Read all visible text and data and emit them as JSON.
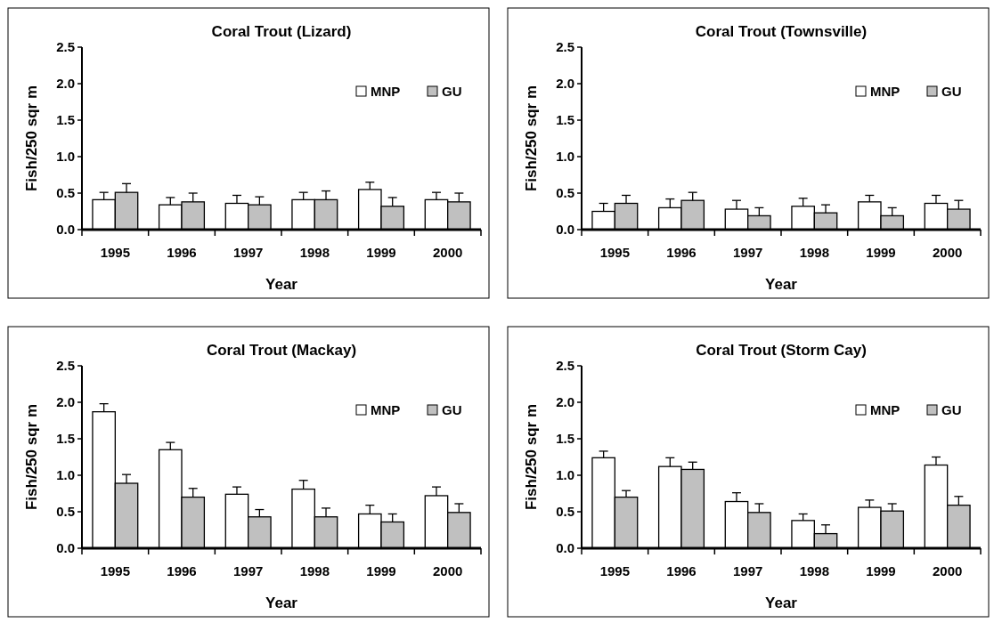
{
  "chart_data": [
    {
      "type": "bar",
      "title": "Coral Trout (Lizard)",
      "xlabel": "Year",
      "ylabel": "Fish/250 sqr m",
      "categories": [
        "1995",
        "1996",
        "1997",
        "1998",
        "1999",
        "2000"
      ],
      "ylim": [
        0,
        2.5
      ],
      "yticks": [
        {
          "value": 0,
          "label": "0.0"
        },
        {
          "value": 0.5,
          "label": "0.5"
        },
        {
          "value": 1,
          "label": "1.0"
        },
        {
          "value": 1.5,
          "label": "1.5"
        },
        {
          "value": 2,
          "label": "2.0"
        },
        {
          "value": 2.5,
          "label": "2.5"
        }
      ],
      "legend": "top right",
      "series": [
        {
          "name": "MNP",
          "color": "#ffffff",
          "values": [
            0.41,
            0.34,
            0.36,
            0.41,
            0.55,
            0.41
          ],
          "errors": [
            [
              0.41,
              0.51
            ],
            [
              0.34,
              0.44
            ],
            [
              0.36,
              0.47
            ],
            [
              0.41,
              0.51
            ],
            [
              0.55,
              0.65
            ],
            [
              0.41,
              0.51
            ]
          ]
        },
        {
          "name": "GU",
          "color": "#c0c0c0",
          "values": [
            0.51,
            0.38,
            0.34,
            0.41,
            0.32,
            0.38
          ],
          "errors": [
            [
              0.51,
              0.63
            ],
            [
              0.38,
              0.5
            ],
            [
              0.34,
              0.45
            ],
            [
              0.41,
              0.53
            ],
            [
              0.32,
              0.44
            ],
            [
              0.38,
              0.5
            ]
          ]
        }
      ]
    },
    {
      "type": "bar",
      "title": "Coral Trout (Townsville)",
      "xlabel": "Year",
      "ylabel": "Fish/250 sqr m",
      "categories": [
        "1995",
        "1996",
        "1997",
        "1998",
        "1999",
        "2000"
      ],
      "ylim": [
        0,
        2.5
      ],
      "yticks": [
        {
          "value": 0,
          "label": "0.0"
        },
        {
          "value": 0.5,
          "label": "0.5"
        },
        {
          "value": 1,
          "label": "1.0"
        },
        {
          "value": 1.5,
          "label": "1.5"
        },
        {
          "value": 2,
          "label": "2.0"
        },
        {
          "value": 2.5,
          "label": "2.5"
        }
      ],
      "legend": "top right",
      "series": [
        {
          "name": "MNP",
          "color": "#ffffff",
          "values": [
            0.25,
            0.3,
            0.28,
            0.32,
            0.38,
            0.36
          ],
          "errors": [
            [
              0.25,
              0.36
            ],
            [
              0.3,
              0.42
            ],
            [
              0.28,
              0.4
            ],
            [
              0.32,
              0.43
            ],
            [
              0.38,
              0.47
            ],
            [
              0.36,
              0.47
            ]
          ]
        },
        {
          "name": "GU",
          "color": "#c0c0c0",
          "values": [
            0.36,
            0.4,
            0.19,
            0.23,
            0.19,
            0.28
          ],
          "errors": [
            [
              0.36,
              0.47
            ],
            [
              0.4,
              0.51
            ],
            [
              0.19,
              0.3
            ],
            [
              0.23,
              0.34
            ],
            [
              0.19,
              0.3
            ],
            [
              0.28,
              0.4
            ]
          ]
        }
      ]
    },
    {
      "type": "bar",
      "title": "Coral Trout (Mackay)",
      "xlabel": "Year",
      "ylabel": "Fish/250 sqr m",
      "categories": [
        "1995",
        "1996",
        "1997",
        "1998",
        "1999",
        "2000"
      ],
      "ylim": [
        0,
        2.5
      ],
      "yticks": [
        {
          "value": 0,
          "label": "0.0"
        },
        {
          "value": 0.5,
          "label": "0.5"
        },
        {
          "value": 1,
          "label": "1.0"
        },
        {
          "value": 1.5,
          "label": "1.5"
        },
        {
          "value": 2,
          "label": "2.0"
        },
        {
          "value": 2.5,
          "label": "2.5"
        }
      ],
      "legend": "top right",
      "series": [
        {
          "name": "MNP",
          "color": "#ffffff",
          "values": [
            1.87,
            1.35,
            0.74,
            0.81,
            0.47,
            0.72
          ],
          "errors": [
            [
              1.87,
              1.98
            ],
            [
              1.35,
              1.45
            ],
            [
              0.74,
              0.84
            ],
            [
              0.81,
              0.93
            ],
            [
              0.47,
              0.59
            ],
            [
              0.72,
              0.84
            ]
          ]
        },
        {
          "name": "GU",
          "color": "#c0c0c0",
          "values": [
            0.89,
            0.7,
            0.43,
            0.43,
            0.36,
            0.49
          ],
          "errors": [
            [
              0.89,
              1.01
            ],
            [
              0.7,
              0.82
            ],
            [
              0.43,
              0.53
            ],
            [
              0.43,
              0.55
            ],
            [
              0.36,
              0.47
            ],
            [
              0.49,
              0.61
            ]
          ]
        }
      ]
    },
    {
      "type": "bar",
      "title": "Coral Trout (Storm Cay)",
      "xlabel": "Year",
      "ylabel": "Fish/250 sqr m",
      "categories": [
        "1995",
        "1996",
        "1997",
        "1998",
        "1999",
        "2000"
      ],
      "ylim": [
        0,
        2.5
      ],
      "yticks": [
        {
          "value": 0,
          "label": "0.0"
        },
        {
          "value": 0.5,
          "label": "0.5"
        },
        {
          "value": 1,
          "label": "1.0"
        },
        {
          "value": 1.5,
          "label": "1.5"
        },
        {
          "value": 2,
          "label": "2.0"
        },
        {
          "value": 2.5,
          "label": "2.5"
        }
      ],
      "legend": "top right",
      "series": [
        {
          "name": "MNP",
          "color": "#ffffff",
          "values": [
            1.24,
            1.12,
            0.64,
            0.38,
            0.56,
            1.14
          ],
          "errors": [
            [
              1.24,
              1.33
            ],
            [
              1.12,
              1.24
            ],
            [
              0.64,
              0.76
            ],
            [
              0.38,
              0.47
            ],
            [
              0.56,
              0.66
            ],
            [
              1.14,
              1.25
            ]
          ]
        },
        {
          "name": "GU",
          "color": "#c0c0c0",
          "values": [
            0.7,
            1.08,
            0.49,
            0.2,
            0.51,
            0.59
          ],
          "errors": [
            [
              0.7,
              0.79
            ],
            [
              1.08,
              1.18
            ],
            [
              0.49,
              0.61
            ],
            [
              0.2,
              0.32
            ],
            [
              0.51,
              0.61
            ],
            [
              0.59,
              0.71
            ]
          ]
        }
      ]
    }
  ]
}
